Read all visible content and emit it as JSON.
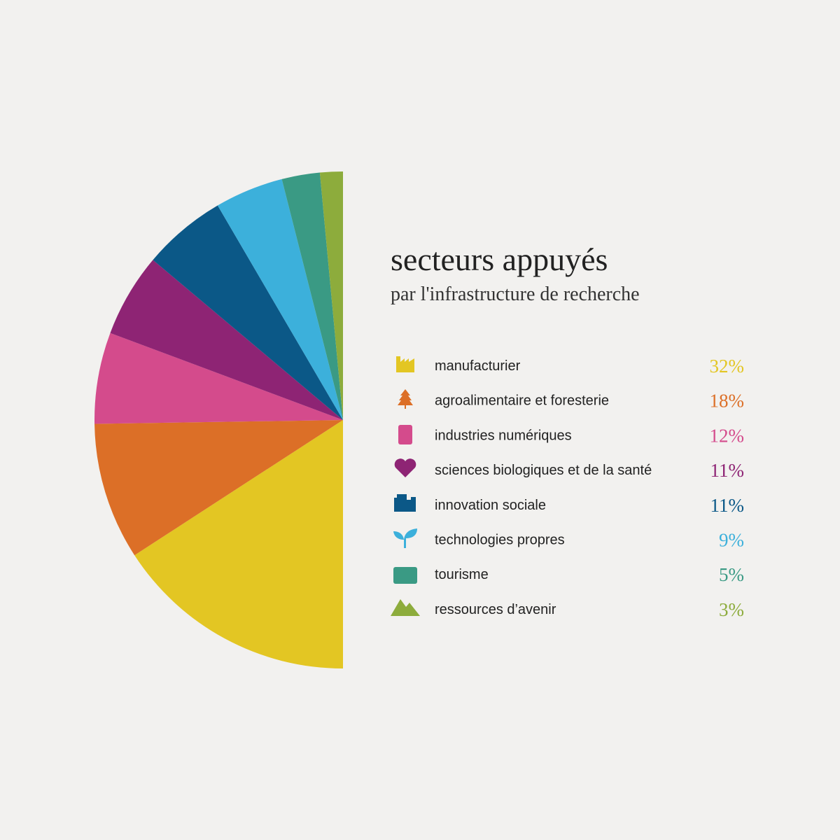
{
  "chart_data": {
    "type": "pie",
    "title": "secteurs appuyés",
    "subtitle": "par l'infrastructure de recherche",
    "categories": [
      "manufacturier",
      "agroalimentaire et foresterie",
      "industries numériques",
      "sciences biologiques et de la santé",
      "innovation sociale",
      "technologies propres",
      "tourisme",
      "ressources d’avenir"
    ],
    "values": [
      32,
      18,
      12,
      11,
      11,
      9,
      5,
      3
    ],
    "value_labels": [
      "32%",
      "18%",
      "12%",
      "11%",
      "11%",
      "9%",
      "5%",
      "3%"
    ],
    "colors": [
      "#e3c623",
      "#dc6f27",
      "#d44b8c",
      "#8e2474",
      "#0b5887",
      "#3cb0db",
      "#3a9a84",
      "#8dac3c"
    ]
  }
}
